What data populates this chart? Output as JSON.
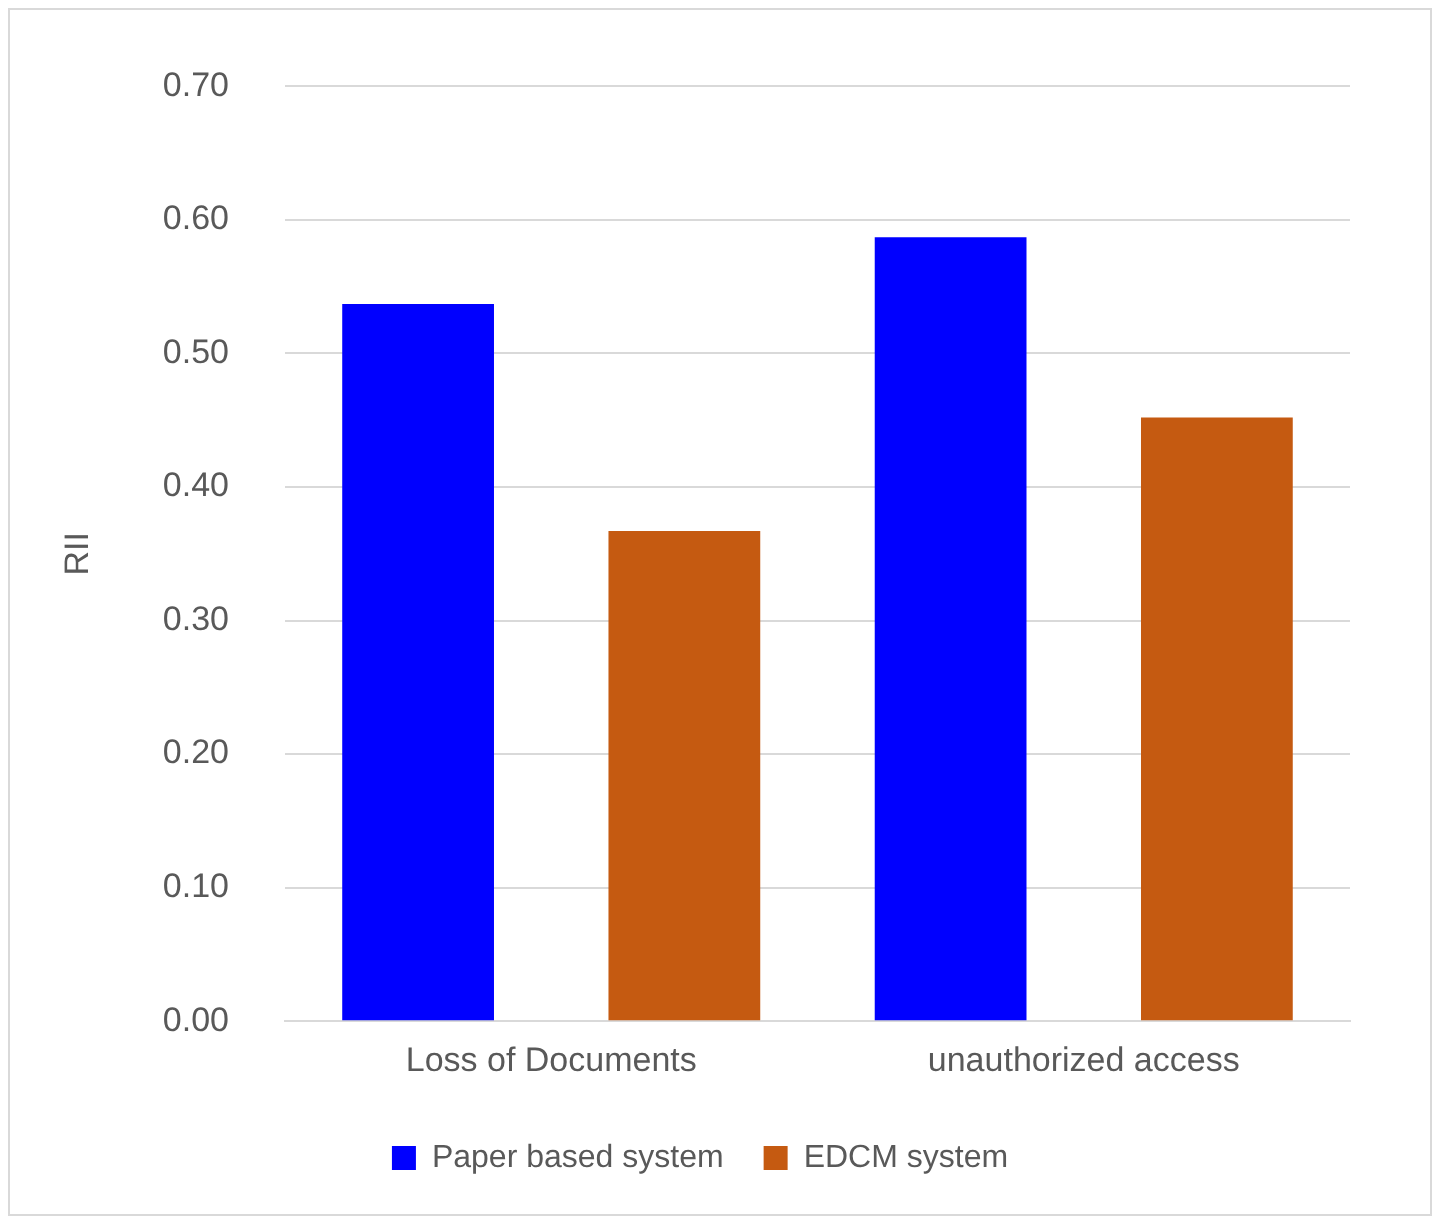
{
  "chart_data": {
    "type": "bar",
    "ylabel": "RII",
    "categories": [
      "Loss of Documents",
      "unauthorized access"
    ],
    "series": [
      {
        "name": "Paper based system",
        "color": "#0000ff",
        "values": [
          0.537,
          0.587
        ]
      },
      {
        "name": "EDCM system",
        "color": "#c55a11",
        "values": [
          0.367,
          0.452
        ]
      }
    ],
    "ylim": [
      0,
      0.7
    ],
    "yticks": [
      {
        "value": 0,
        "label": "0.00"
      },
      {
        "value": 0.1,
        "label": "0.10"
      },
      {
        "value": 0.2,
        "label": "0.20"
      },
      {
        "value": 0.3,
        "label": "0.30"
      },
      {
        "value": 0.4,
        "label": "0.40"
      },
      {
        "value": 0.5,
        "label": "0.50"
      },
      {
        "value": 0.6,
        "label": "0.60"
      },
      {
        "value": 0.7,
        "label": "0.70"
      }
    ],
    "grid": "y",
    "legend": "bottom"
  }
}
